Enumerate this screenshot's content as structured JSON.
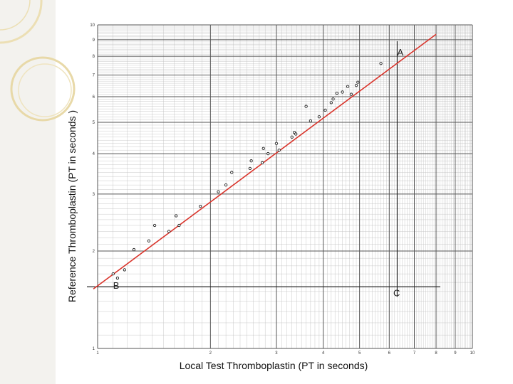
{
  "chart_data": {
    "type": "scatter",
    "title": "",
    "xlabel": "Local Test Thromboplastin (PT in seconds)",
    "ylabel": "Reference Thromboplastin (PT in seconds )",
    "x_scale": "log",
    "y_scale": "log",
    "xlim": [
      1,
      10
    ],
    "ylim": [
      1,
      10
    ],
    "grid": true,
    "x_ticks": [
      "1",
      "2",
      "3",
      "4",
      "5",
      "6",
      "7",
      "8",
      "9",
      "10"
    ],
    "y_ticks": [
      "1",
      "2",
      "3",
      "4",
      "5",
      "6",
      "7",
      "8",
      "9",
      "10"
    ],
    "series": [
      {
        "x": [
          1.1,
          1.13,
          1.18,
          1.25,
          1.37,
          1.42,
          1.55,
          1.62,
          1.65,
          1.88,
          2.1,
          2.2,
          2.28,
          2.55,
          2.57,
          2.75,
          2.77,
          2.85,
          3.0,
          3.05,
          3.3,
          3.35,
          3.38,
          3.6,
          3.7,
          3.9,
          4.05,
          4.2,
          4.25,
          4.35,
          4.5,
          4.65,
          4.75,
          4.9,
          4.95,
          5.7
        ],
        "y": [
          1.7,
          1.65,
          1.75,
          2.02,
          2.15,
          2.4,
          2.3,
          2.57,
          2.4,
          2.75,
          3.05,
          3.2,
          3.5,
          3.6,
          3.8,
          3.75,
          4.15,
          4.0,
          4.3,
          4.1,
          4.5,
          4.65,
          4.6,
          5.6,
          5.05,
          5.2,
          5.45,
          5.75,
          5.9,
          6.15,
          6.2,
          6.45,
          6.1,
          6.5,
          6.65,
          7.6
        ]
      }
    ],
    "trend_line": {
      "x": [
        1.0,
        8.0
      ],
      "y": [
        1.55,
        9.35
      ],
      "color": "#d9342b"
    },
    "reference_lines": [
      {
        "label": "A",
        "x": 6.3,
        "y": 8.05
      },
      {
        "label": "B",
        "x": 1.1,
        "y": 1.53
      },
      {
        "label": "C",
        "x": 6.15,
        "y": 1.45
      }
    ],
    "reference_line_values": {
      "horizontal_y": 1.55,
      "vertical_x": 6.3,
      "horizontal_x_end": 8.0
    }
  }
}
